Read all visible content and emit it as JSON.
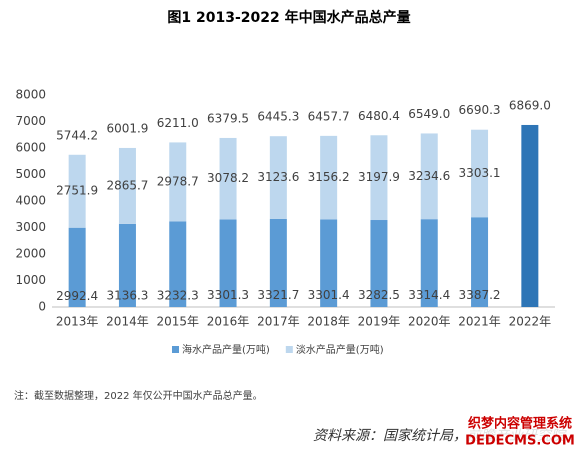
{
  "chart_data": {
    "type": "stacked-bar",
    "title": "图1 2013-2022 年中国水产品总产量",
    "categories": [
      "2013年",
      "2014年",
      "2015年",
      "2016年",
      "2017年",
      "2018年",
      "2019年",
      "2020年",
      "2021年",
      "2022年"
    ],
    "series": [
      {
        "name": "海水产品产量(万吨)",
        "color": "#5b9bd5",
        "values": [
          2992.4,
          3136.3,
          3232.3,
          3301.3,
          3321.7,
          3301.4,
          3282.5,
          3314.4,
          3387.2,
          null
        ]
      },
      {
        "name": "淡水产品产量(万吨)",
        "color": "#bdd7ee",
        "values": [
          2751.9,
          2865.7,
          2978.7,
          3078.2,
          3123.6,
          3156.2,
          3197.9,
          3234.6,
          3303.1,
          null
        ]
      }
    ],
    "totals": {
      "color": "#2e75b6",
      "values": [
        5744.2,
        6001.9,
        6211,
        6379.5,
        6445.3,
        6457.7,
        6480.4,
        6549,
        6690.3,
        6869
      ],
      "value_labels": [
        "5744.2",
        "6001.9",
        "6211.0",
        "6379.5",
        "6445.3",
        "6457.7",
        "6480.4",
        "6549.0",
        "6690.3",
        "6869.0"
      ]
    },
    "ylim": [
      0,
      8000
    ],
    "yticks": [
      0,
      1000,
      2000,
      3000,
      4000,
      5000,
      6000,
      7000,
      8000
    ],
    "note": "注：截至数据整理，2022 年仅公开中国水产品总产量。",
    "source": "资料来源：国家统计局，前瞻产业研究院",
    "watermark": [
      "织梦内容管理系统",
      "DEDECMS.COM"
    ]
  }
}
